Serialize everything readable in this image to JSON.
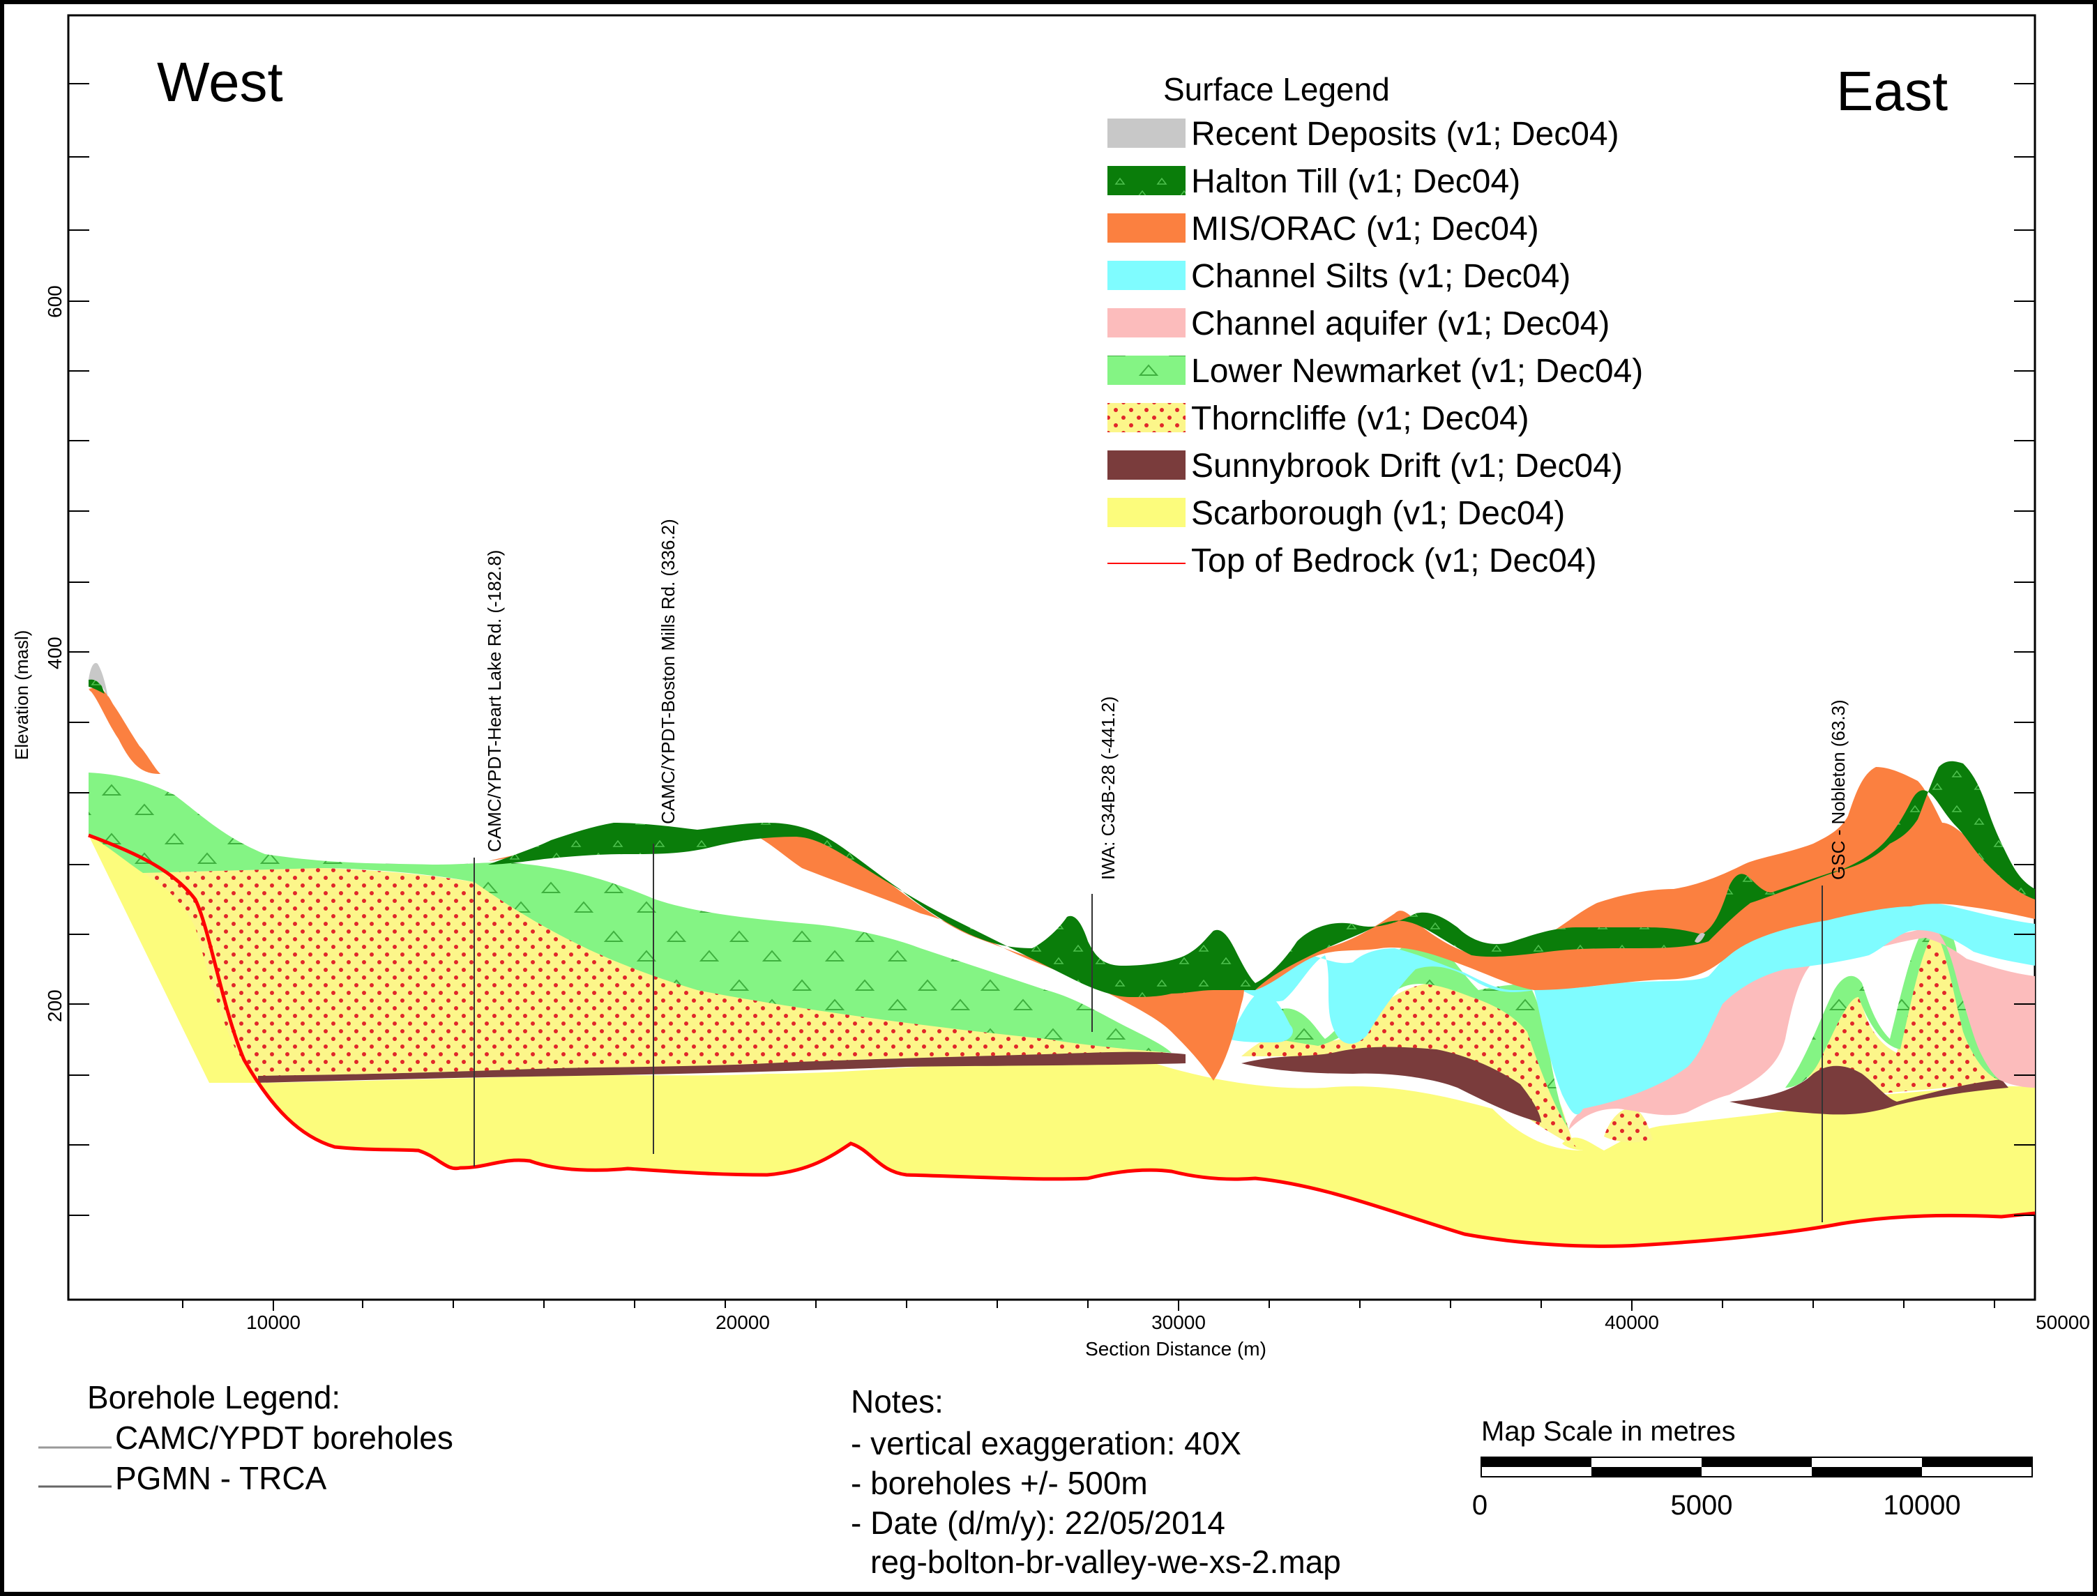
{
  "section": {
    "west_label": "West",
    "east_label": "East",
    "xlabel": "Section Distance (m)",
    "ylabel": "Elevation (masl)",
    "x_ticks": [
      {
        "value": 10000,
        "label": "10000"
      },
      {
        "value": 20000,
        "label": "20000"
      },
      {
        "value": 30000,
        "label": "30000"
      },
      {
        "value": 40000,
        "label": "40000"
      },
      {
        "value": 50000,
        "label": "50000"
      }
    ],
    "y_ticks": [
      {
        "value": 200,
        "label": "200"
      },
      {
        "value": 400,
        "label": "400"
      },
      {
        "value": 600,
        "label": "600"
      }
    ]
  },
  "surface_legend": {
    "title": "Surface Legend",
    "items": [
      {
        "key": "recent",
        "label": "Recent Deposits (v1; Dec04)",
        "color": "#c8c8c8"
      },
      {
        "key": "halton",
        "label": "Halton Till (v1; Dec04)",
        "color": "#0a7d0a"
      },
      {
        "key": "mis",
        "label": "MIS/ORAC (v1; Dec04)",
        "color": "#fb8040"
      },
      {
        "key": "silts",
        "label": "Channel Silts (v1; Dec04)",
        "color": "#7ffcff"
      },
      {
        "key": "aquifer",
        "label": "Channel aquifer (v1; Dec04)",
        "color": "#fcbcbc"
      },
      {
        "key": "newmarket",
        "label": "Lower Newmarket (v1; Dec04)",
        "color": "#84f484"
      },
      {
        "key": "thorncliffe",
        "label": "Thorncliffe (v1; Dec04)",
        "color": "#f8d860"
      },
      {
        "key": "sunnybrook",
        "label": "Sunnybrook Drift (v1; Dec04)",
        "color": "#7a3c3c"
      },
      {
        "key": "scarborough",
        "label": "Scarborough (v1; Dec04)",
        "color": "#fcfc7c"
      },
      {
        "key": "bedrock",
        "label": "Top of Bedrock (v1; Dec04)",
        "color": "#ff0000"
      }
    ]
  },
  "boreholes": [
    {
      "label": "CAMC/YPDT-Heart Lake Rd. (-182.8)"
    },
    {
      "label": "CAMC/YPDT-Boston Mills Rd. (336.2)"
    },
    {
      "label": "IWA: C34B-28 (-441.2)"
    },
    {
      "label": "GSC - Nobleton (63.3)"
    }
  ],
  "borehole_legend": {
    "title": "Borehole Legend:",
    "items": [
      {
        "label": "CAMC/YPDT boreholes",
        "color": "#999999"
      },
      {
        "label": "PGMN - TRCA",
        "color": "#666666"
      }
    ]
  },
  "notes": {
    "title": "Notes:",
    "lines": [
      "- vertical exaggeration: 40X",
      "- boreholes +/- 500m",
      "- Date (d/m/y):  22/05/2014",
      "reg-bolton-br-valley-we-xs-2.map"
    ]
  },
  "scale_bar": {
    "title": "Map Scale in metres",
    "labels": [
      "0",
      "5000",
      "10000"
    ]
  }
}
